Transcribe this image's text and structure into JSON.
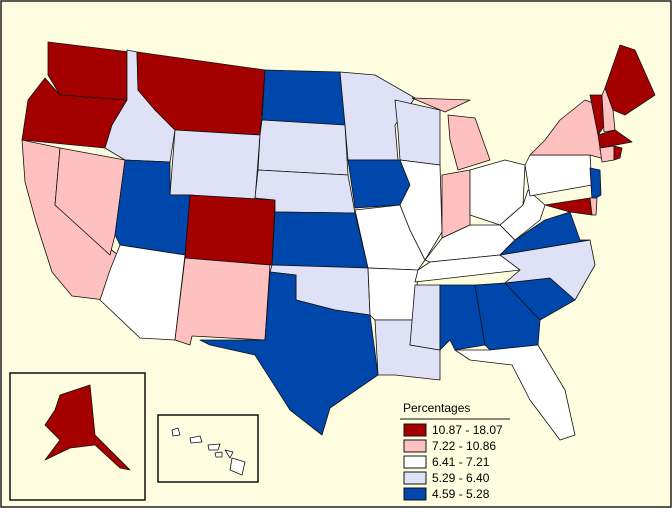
{
  "legend": {
    "title": "Percentages",
    "classes": [
      {
        "label": "10.87 - 18.07",
        "color": "#a50000"
      },
      {
        "label": "7.22 - 10.86",
        "color": "#ffc0c0"
      },
      {
        "label": "6.41 - 7.21",
        "color": "#ffffff"
      },
      {
        "label": "5.29 - 6.40",
        "color": "#dfe1f7"
      },
      {
        "label": "4.59 - 5.28",
        "color": "#0047ab"
      }
    ]
  }
}
